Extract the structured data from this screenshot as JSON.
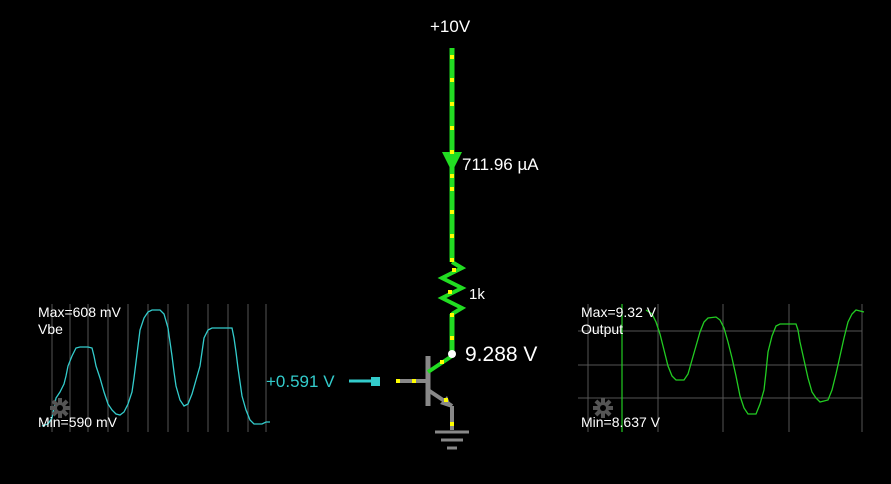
{
  "supply": {
    "label": "+10V"
  },
  "current": {
    "label": "711.96 µA"
  },
  "resistor": {
    "label": "1k"
  },
  "collector": {
    "label": "9.288 V"
  },
  "base_input": {
    "label": "+0.591 V"
  },
  "scope_vbe": {
    "max_label": "Max=608 mV",
    "name": "Vbe",
    "min_label": "Min=590 mV",
    "trace_color": "#33cccc"
  },
  "scope_output": {
    "max_label": "Max=9.32 V",
    "name": "Output",
    "min_label": "Min=8.637 V",
    "trace_color": "#22cc22"
  },
  "colors": {
    "wire_active": "#22dd22",
    "current_dots": "#ffff00",
    "input_wire": "#33cccc",
    "ground": "#888888",
    "grid": "#555555",
    "text": "#ffffff"
  }
}
